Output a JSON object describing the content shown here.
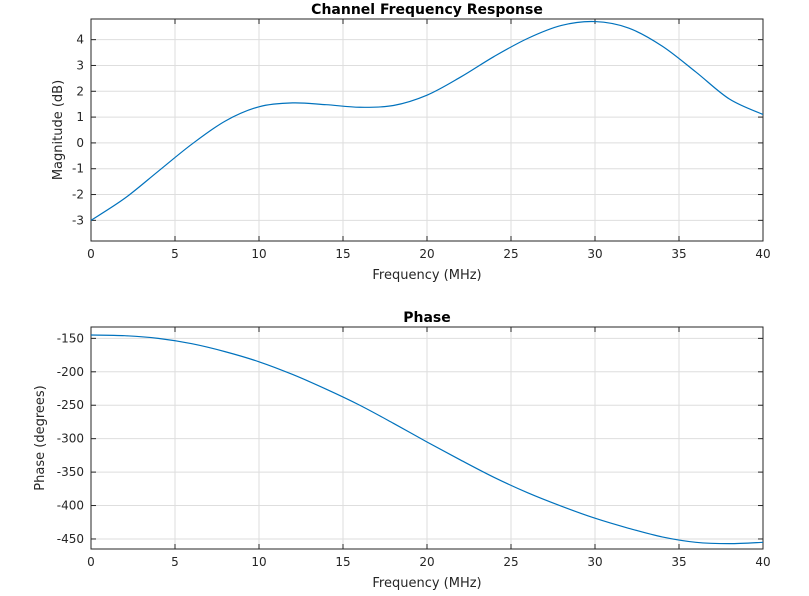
{
  "chart_data": [
    {
      "type": "line",
      "title": "Channel Frequency Response",
      "xlabel": "Frequency (MHz)",
      "ylabel": "Magnitude (dB)",
      "xlim": [
        0,
        40
      ],
      "ylim": [
        -3.8,
        4.8
      ],
      "xticks": [
        0,
        5,
        10,
        15,
        20,
        25,
        30,
        35,
        40
      ],
      "yticks": [
        -3,
        -2,
        -1,
        0,
        1,
        2,
        3,
        4
      ],
      "grid": true,
      "color": "#0072bd",
      "series": [
        {
          "x": [
            0,
            2,
            4,
            6,
            8,
            10,
            12,
            14,
            16,
            18,
            20,
            22,
            24,
            26,
            28,
            30,
            32,
            34,
            36,
            38,
            40
          ],
          "y": [
            -3.0,
            -2.15,
            -1.1,
            -0.05,
            0.85,
            1.4,
            1.55,
            1.48,
            1.38,
            1.45,
            1.85,
            2.55,
            3.35,
            4.05,
            4.55,
            4.7,
            4.45,
            3.75,
            2.75,
            1.7,
            1.1
          ]
        }
      ]
    },
    {
      "type": "line",
      "title": "Phase",
      "xlabel": "Frequency (MHz)",
      "ylabel": "Phase (degrees)",
      "xlim": [
        0,
        40
      ],
      "ylim": [
        -465,
        -133
      ],
      "xticks": [
        0,
        5,
        10,
        15,
        20,
        25,
        30,
        35,
        40
      ],
      "yticks": [
        -150,
        -200,
        -250,
        -300,
        -350,
        -400,
        -450
      ],
      "grid": true,
      "color": "#0072bd",
      "series": [
        {
          "x": [
            0,
            2,
            4,
            6,
            8,
            10,
            12,
            14,
            16,
            18,
            20,
            22,
            24,
            26,
            28,
            30,
            32,
            34,
            36,
            38,
            40
          ],
          "y": [
            -145,
            -146,
            -150,
            -158,
            -170,
            -185,
            -204,
            -226,
            -250,
            -277,
            -305,
            -332,
            -358,
            -381,
            -401,
            -419,
            -434,
            -447,
            -455,
            -457,
            -455
          ]
        }
      ]
    }
  ]
}
